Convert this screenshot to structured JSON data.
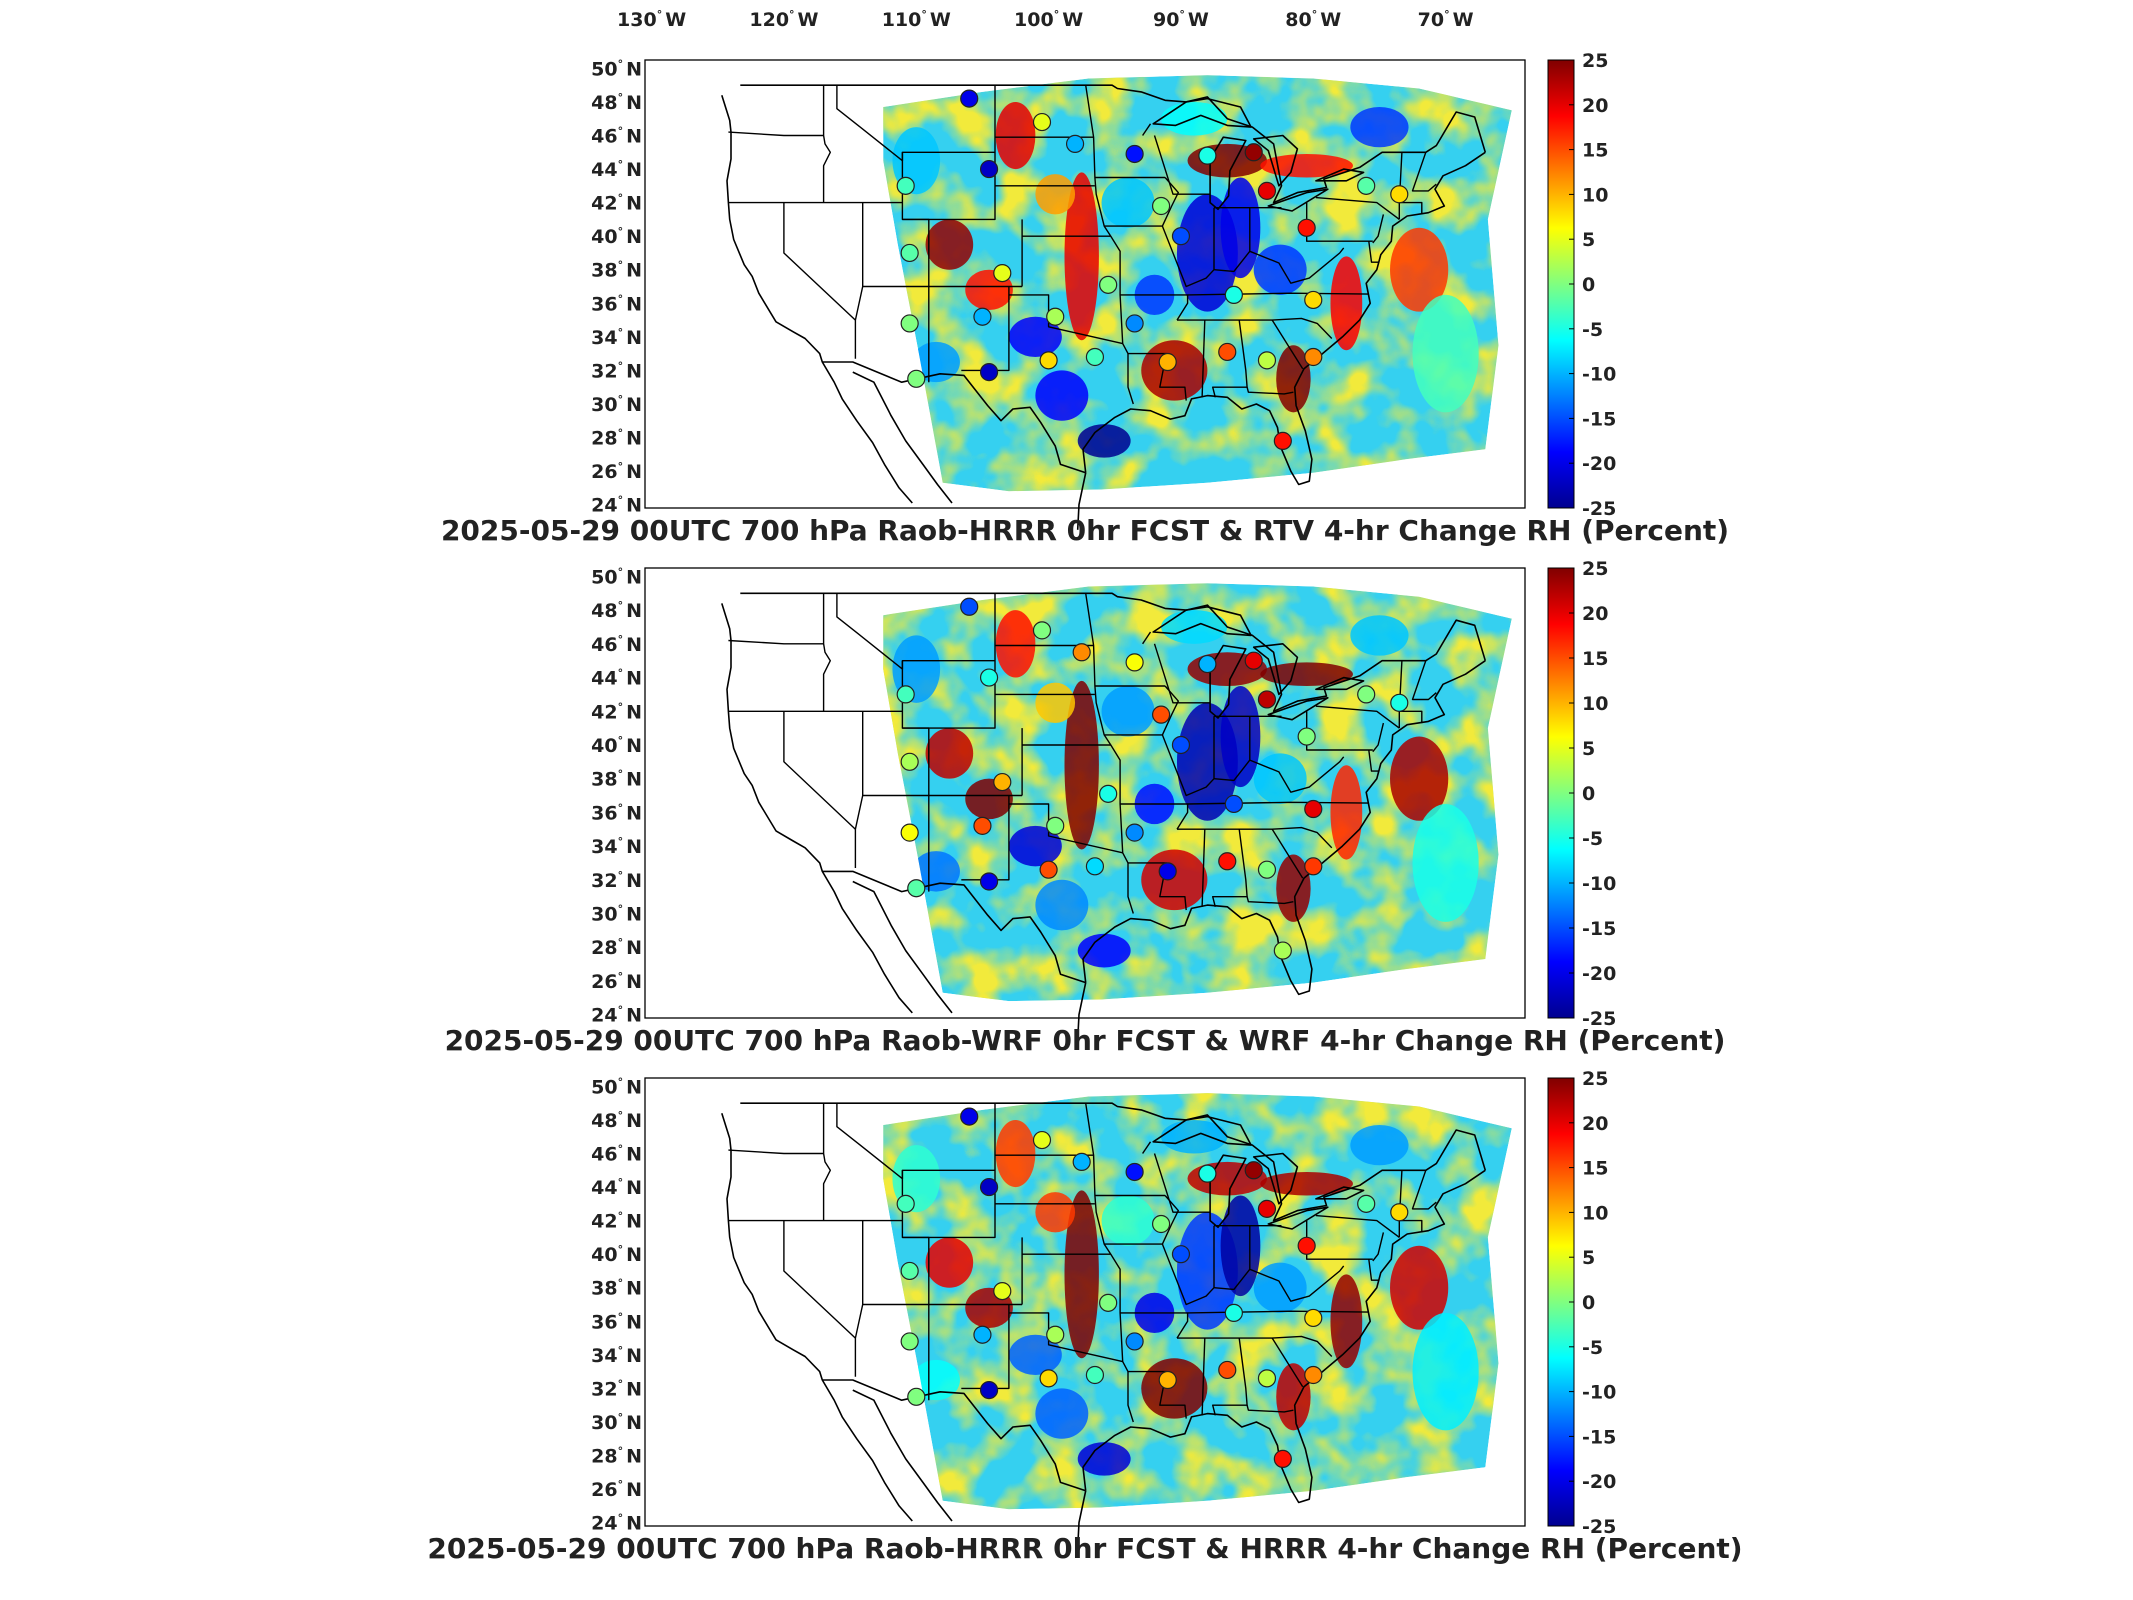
{
  "chart_data": {
    "type": "heatmap",
    "top_axis": {
      "tick_labels": [
        "130",
        "120",
        "110",
        "100",
        "90",
        "80",
        "70"
      ],
      "tick_values": [
        -130,
        -120,
        -110,
        -100,
        -90,
        -80,
        -70
      ],
      "hemisphere": "W"
    },
    "left_axis": {
      "tick_labels": [
        "50",
        "48",
        "46",
        "44",
        "42",
        "40",
        "38",
        "36",
        "34",
        "32",
        "30",
        "28",
        "26",
        "24"
      ],
      "tick_values": [
        50,
        48,
        46,
        44,
        42,
        40,
        38,
        36,
        34,
        32,
        30,
        28,
        26,
        24
      ],
      "hemisphere": "N"
    },
    "degree_symbol": "°",
    "colorbar": {
      "min": -25,
      "max": 25,
      "tick_labels": [
        "25",
        "20",
        "15",
        "10",
        "5",
        "0",
        "-5",
        "-10",
        "-15",
        "-20",
        "-25"
      ],
      "tick_values": [
        25,
        20,
        15,
        10,
        5,
        0,
        -5,
        -10,
        -15,
        -20,
        -25
      ],
      "colormap": "jet",
      "colors": [
        "#00008f",
        "#0000ff",
        "#0080ff",
        "#00ffff",
        "#80ff80",
        "#ffff00",
        "#ff8000",
        "#ff0000",
        "#800000"
      ]
    },
    "panels": [
      {
        "title": "2025-05-29 00UTC 700 hPa Raob-HRRR 0hr FCST & RTV 4-hr Change RH (Percent)",
        "raob_points": [
          {
            "lon": -106.0,
            "lat": 48.2,
            "value": -20
          },
          {
            "lon": -100.5,
            "lat": 46.8,
            "value": 5
          },
          {
            "lon": -98.0,
            "lat": 45.5,
            "value": -10
          },
          {
            "lon": -93.5,
            "lat": 44.9,
            "value": -18
          },
          {
            "lon": -104.5,
            "lat": 44.0,
            "value": -22
          },
          {
            "lon": -110.8,
            "lat": 43.0,
            "value": -3
          },
          {
            "lon": -88.0,
            "lat": 44.8,
            "value": -5
          },
          {
            "lon": -84.5,
            "lat": 45.0,
            "value": 24
          },
          {
            "lon": -83.5,
            "lat": 42.7,
            "value": 20
          },
          {
            "lon": -76.0,
            "lat": 43.0,
            "value": -2
          },
          {
            "lon": -73.5,
            "lat": 42.5,
            "value": 8
          },
          {
            "lon": -91.5,
            "lat": 41.8,
            "value": 0
          },
          {
            "lon": -90.0,
            "lat": 40.0,
            "value": -15
          },
          {
            "lon": -80.5,
            "lat": 40.5,
            "value": 18
          },
          {
            "lon": -110.5,
            "lat": 39.0,
            "value": -2
          },
          {
            "lon": -103.5,
            "lat": 37.8,
            "value": 5
          },
          {
            "lon": -95.5,
            "lat": 37.1,
            "value": 0
          },
          {
            "lon": -86.0,
            "lat": 36.5,
            "value": -5
          },
          {
            "lon": -80.0,
            "lat": 36.2,
            "value": 8
          },
          {
            "lon": -105.0,
            "lat": 35.2,
            "value": -10
          },
          {
            "lon": -99.5,
            "lat": 35.2,
            "value": 2
          },
          {
            "lon": -93.5,
            "lat": 34.8,
            "value": -12
          },
          {
            "lon": -110.5,
            "lat": 34.8,
            "value": 0
          },
          {
            "lon": -96.5,
            "lat": 32.8,
            "value": -3
          },
          {
            "lon": -100.0,
            "lat": 32.6,
            "value": 8
          },
          {
            "lon": -91.0,
            "lat": 32.5,
            "value": 10
          },
          {
            "lon": -86.5,
            "lat": 33.1,
            "value": 15
          },
          {
            "lon": -83.5,
            "lat": 32.6,
            "value": 3
          },
          {
            "lon": -80.0,
            "lat": 32.8,
            "value": 12
          },
          {
            "lon": -104.5,
            "lat": 31.9,
            "value": -22
          },
          {
            "lon": -110.0,
            "lat": 31.5,
            "value": 0
          },
          {
            "lon": -82.3,
            "lat": 27.8,
            "value": 18
          }
        ]
      },
      {
        "title": "2025-05-29 00UTC 700 hPa Raob-WRF 0hr FCST & WRF 4-hr Change RH (Percent)",
        "raob_points": [
          {
            "lon": -106.0,
            "lat": 48.2,
            "value": -15
          },
          {
            "lon": -100.5,
            "lat": 46.8,
            "value": 0
          },
          {
            "lon": -97.5,
            "lat": 45.5,
            "value": 12
          },
          {
            "lon": -93.5,
            "lat": 44.9,
            "value": 6
          },
          {
            "lon": -104.5,
            "lat": 44.0,
            "value": -5
          },
          {
            "lon": -110.8,
            "lat": 43.0,
            "value": -3
          },
          {
            "lon": -88.0,
            "lat": 44.8,
            "value": -10
          },
          {
            "lon": -84.5,
            "lat": 45.0,
            "value": 20
          },
          {
            "lon": -83.5,
            "lat": 42.7,
            "value": 22
          },
          {
            "lon": -76.0,
            "lat": 43.0,
            "value": 0
          },
          {
            "lon": -73.5,
            "lat": 42.5,
            "value": -5
          },
          {
            "lon": -91.5,
            "lat": 41.8,
            "value": 15
          },
          {
            "lon": -90.0,
            "lat": 40.0,
            "value": -15
          },
          {
            "lon": -80.5,
            "lat": 40.5,
            "value": 0
          },
          {
            "lon": -110.5,
            "lat": 39.0,
            "value": 2
          },
          {
            "lon": -103.5,
            "lat": 37.8,
            "value": 10
          },
          {
            "lon": -95.5,
            "lat": 37.1,
            "value": -5
          },
          {
            "lon": -86.0,
            "lat": 36.5,
            "value": -15
          },
          {
            "lon": -80.0,
            "lat": 36.2,
            "value": 20
          },
          {
            "lon": -105.0,
            "lat": 35.2,
            "value": 15
          },
          {
            "lon": -99.5,
            "lat": 35.2,
            "value": 0
          },
          {
            "lon": -93.5,
            "lat": 34.8,
            "value": -12
          },
          {
            "lon": -110.5,
            "lat": 34.8,
            "value": 6
          },
          {
            "lon": -96.5,
            "lat": 32.8,
            "value": -8
          },
          {
            "lon": -100.0,
            "lat": 32.6,
            "value": 15
          },
          {
            "lon": -91.0,
            "lat": 32.5,
            "value": -20
          },
          {
            "lon": -86.5,
            "lat": 33.1,
            "value": 18
          },
          {
            "lon": -83.5,
            "lat": 32.6,
            "value": 0
          },
          {
            "lon": -80.0,
            "lat": 32.8,
            "value": 16
          },
          {
            "lon": -104.5,
            "lat": 31.9,
            "value": -20
          },
          {
            "lon": -110.0,
            "lat": 31.5,
            "value": -2
          },
          {
            "lon": -82.3,
            "lat": 27.8,
            "value": 2
          }
        ]
      },
      {
        "title": "2025-05-29 00UTC 700 hPa Raob-HRRR 0hr FCST & HRRR 4-hr Change RH (Percent)",
        "raob_points": [
          {
            "lon": -106.0,
            "lat": 48.2,
            "value": -20
          },
          {
            "lon": -100.5,
            "lat": 46.8,
            "value": 5
          },
          {
            "lon": -97.5,
            "lat": 45.5,
            "value": -10
          },
          {
            "lon": -93.5,
            "lat": 44.9,
            "value": -18
          },
          {
            "lon": -104.5,
            "lat": 44.0,
            "value": -22
          },
          {
            "lon": -110.8,
            "lat": 43.0,
            "value": -3
          },
          {
            "lon": -88.0,
            "lat": 44.8,
            "value": -5
          },
          {
            "lon": -84.5,
            "lat": 45.0,
            "value": 24
          },
          {
            "lon": -83.5,
            "lat": 42.7,
            "value": 20
          },
          {
            "lon": -76.0,
            "lat": 43.0,
            "value": -2
          },
          {
            "lon": -73.5,
            "lat": 42.5,
            "value": 8
          },
          {
            "lon": -91.5,
            "lat": 41.8,
            "value": 0
          },
          {
            "lon": -90.0,
            "lat": 40.0,
            "value": -15
          },
          {
            "lon": -80.5,
            "lat": 40.5,
            "value": 18
          },
          {
            "lon": -110.5,
            "lat": 39.0,
            "value": -2
          },
          {
            "lon": -103.5,
            "lat": 37.8,
            "value": 5
          },
          {
            "lon": -95.5,
            "lat": 37.1,
            "value": 0
          },
          {
            "lon": -86.0,
            "lat": 36.5,
            "value": -5
          },
          {
            "lon": -80.0,
            "lat": 36.2,
            "value": 8
          },
          {
            "lon": -105.0,
            "lat": 35.2,
            "value": -10
          },
          {
            "lon": -99.5,
            "lat": 35.2,
            "value": 2
          },
          {
            "lon": -93.5,
            "lat": 34.8,
            "value": -12
          },
          {
            "lon": -110.5,
            "lat": 34.8,
            "value": 0
          },
          {
            "lon": -96.5,
            "lat": 32.8,
            "value": -3
          },
          {
            "lon": -100.0,
            "lat": 32.6,
            "value": 8
          },
          {
            "lon": -91.0,
            "lat": 32.5,
            "value": 10
          },
          {
            "lon": -86.5,
            "lat": 33.1,
            "value": 15
          },
          {
            "lon": -83.5,
            "lat": 32.6,
            "value": 3
          },
          {
            "lon": -80.0,
            "lat": 32.8,
            "value": 12
          },
          {
            "lon": -104.5,
            "lat": 31.9,
            "value": -22
          },
          {
            "lon": -110.0,
            "lat": 31.5,
            "value": 0
          },
          {
            "lon": -82.3,
            "lat": 27.8,
            "value": 18
          }
        ]
      }
    ]
  }
}
